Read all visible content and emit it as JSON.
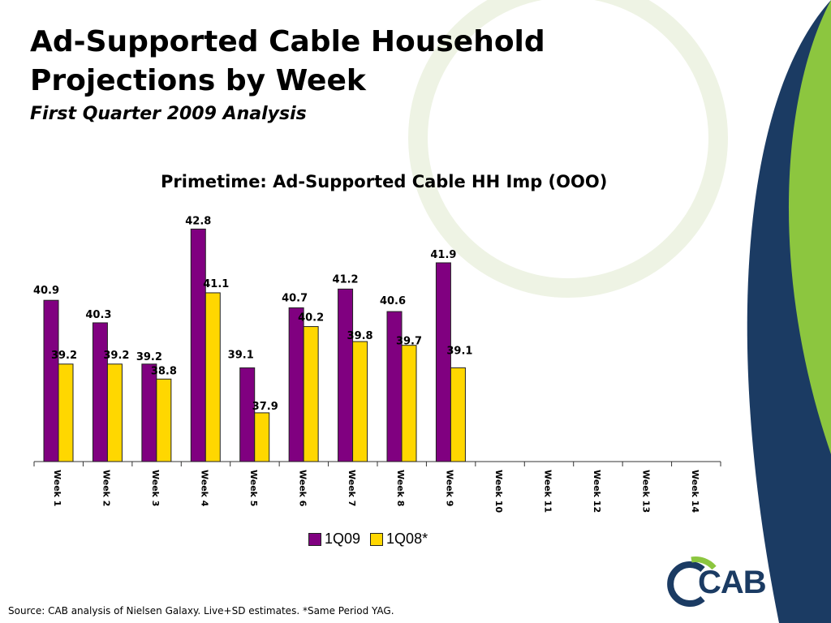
{
  "slide": {
    "title_line1": "Ad-Supported Cable Household",
    "title_line2": "Projections by Week",
    "subtitle": "First Quarter 2009 Analysis",
    "source": "Source: CAB analysis of Nielsen Galaxy. Live+SD estimates. *Same Period YAG.",
    "logo_text": "CAB",
    "colors": {
      "navy_swoosh": "#1b3b63",
      "green_swoosh": "#8cc63f",
      "bar_1q09": "#800080",
      "bar_1q08": "#ffd700"
    }
  },
  "chart_data": {
    "type": "bar",
    "title": "Primetime: Ad-Supported Cable HH Imp (OOO)",
    "categories": [
      "Week 1",
      "Week 2",
      "Week 3",
      "Week 4",
      "Week 5",
      "Week 6",
      "Week 7",
      "Week 8",
      "Week 9",
      "Week 10",
      "Week 11",
      "Week 12",
      "Week 13",
      "Week 14"
    ],
    "series": [
      {
        "name": "1Q09",
        "color": "#800080",
        "values": [
          40.9,
          40.3,
          39.2,
          42.8,
          39.1,
          40.7,
          41.2,
          40.6,
          41.9,
          null,
          null,
          null,
          null,
          null
        ]
      },
      {
        "name": "1Q08*",
        "color": "#ffd700",
        "values": [
          39.2,
          39.2,
          38.8,
          41.1,
          37.9,
          40.2,
          39.8,
          39.7,
          39.1,
          null,
          null,
          null,
          null,
          null
        ]
      }
    ],
    "ylim": [
      36.6,
      43.5
    ],
    "grid": false,
    "legend_position": "bottom"
  }
}
